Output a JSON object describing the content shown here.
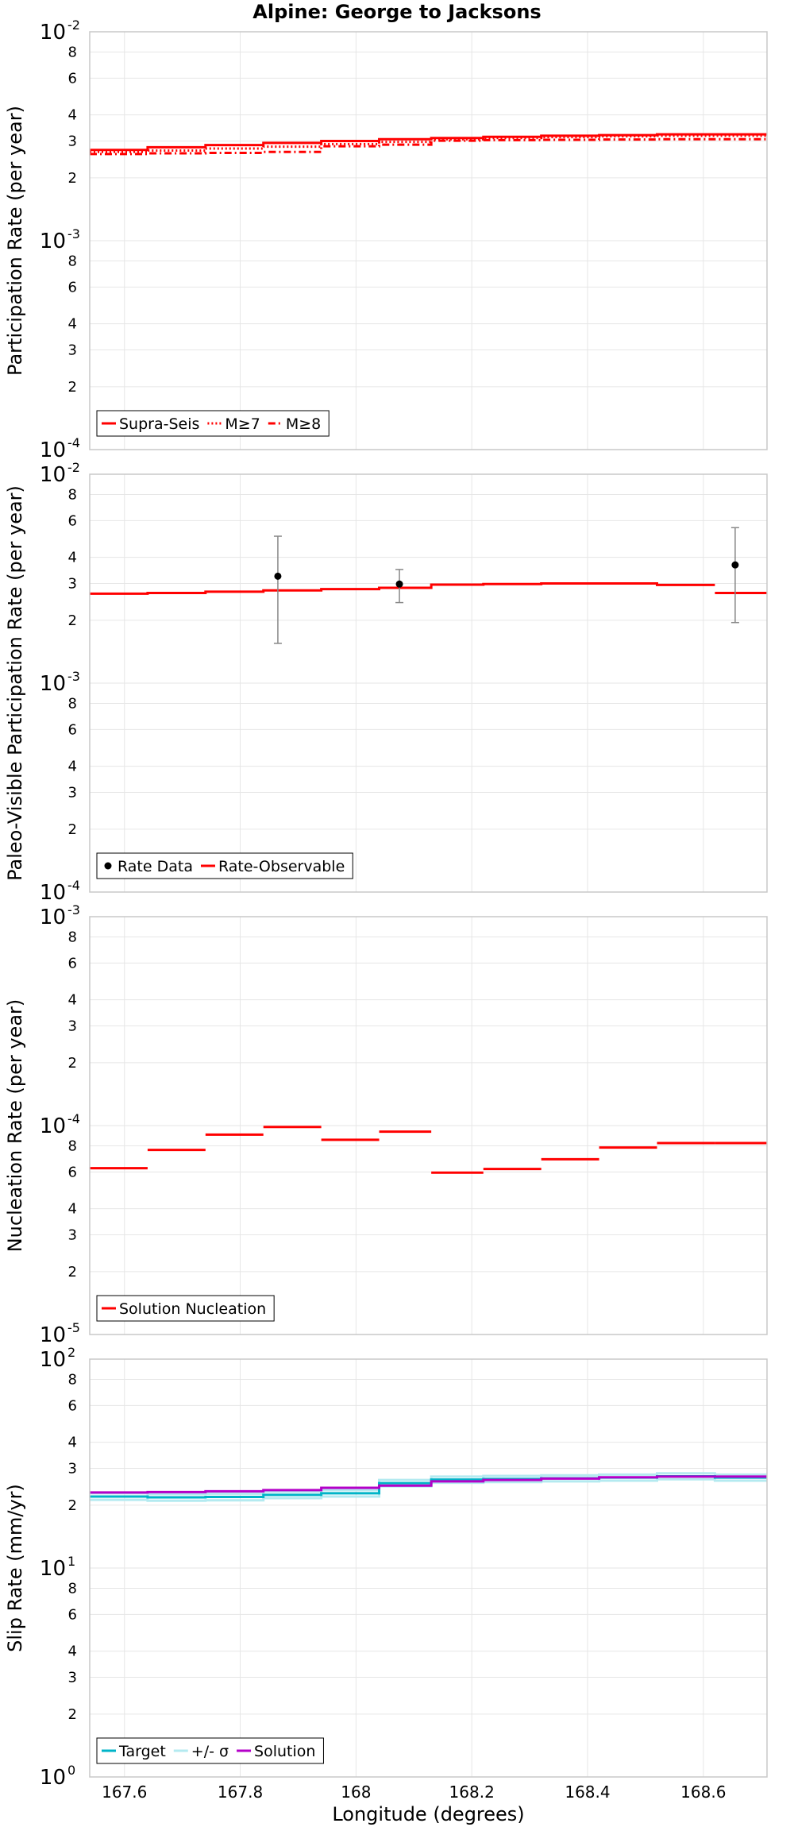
{
  "title": "Alpine: George to Jacksons",
  "x_axis": {
    "label": "Longitude (degrees)",
    "range": [
      167.54,
      168.71
    ],
    "ticks": [
      167.6,
      167.8,
      168.0,
      168.2,
      168.4,
      168.6
    ],
    "tick_labels": [
      "167.6",
      "167.8",
      "168",
      "168.2",
      "168.4",
      "168.6"
    ]
  },
  "colors": {
    "red": "#ff0000",
    "target": "#00b4c8",
    "sigma": "#b4eaf0",
    "solution": "#b400c8",
    "error": "#888888",
    "grid": "#e6e6e6",
    "frame": "#c8c8c8"
  },
  "chart_data": [
    {
      "type": "line",
      "name": "participation",
      "ylabel": "Participation Rate (per year)",
      "yscale": "log",
      "ylim": [
        0.0001,
        0.01
      ],
      "decades": [
        {
          "base": "10",
          "exp": "-4",
          "value": 0.0001
        },
        {
          "base": "10",
          "exp": "-3",
          "value": 0.001
        },
        {
          "base": "10",
          "exp": "-2",
          "value": 0.01
        }
      ],
      "minor_ticks": [
        2,
        3,
        4,
        6,
        8
      ],
      "legend": [
        {
          "label": "Supra-Seis",
          "style": "solid"
        },
        {
          "label": "M≥7",
          "style": "dotted"
        },
        {
          "label": "M≥8",
          "style": "dashdot"
        }
      ],
      "x_edges": [
        167.54,
        167.64,
        167.74,
        167.84,
        167.94,
        168.04,
        168.13,
        168.22,
        168.32,
        168.42,
        168.52,
        168.62,
        168.71
      ],
      "series": [
        {
          "name": "Supra-Seis",
          "color": "#ff0000",
          "style": "solid",
          "step": true,
          "values": [
            0.00272,
            0.0028,
            0.00287,
            0.00294,
            0.003,
            0.00306,
            0.0031,
            0.00314,
            0.00318,
            0.0032,
            0.00323,
            0.00323
          ]
        },
        {
          "name": "M≥7",
          "color": "#ff0000",
          "style": "dotted",
          "step": true,
          "values": [
            0.00266,
            0.0027,
            0.00276,
            0.00282,
            0.0029,
            0.00297,
            0.00306,
            0.0031,
            0.00313,
            0.00316,
            0.00318,
            0.00318
          ]
        },
        {
          "name": "M≥8",
          "color": "#ff0000",
          "style": "dashdot",
          "step": true,
          "values": [
            0.0026,
            0.00262,
            0.00263,
            0.00266,
            0.00283,
            0.00288,
            0.00301,
            0.00303,
            0.00304,
            0.00305,
            0.00306,
            0.00306
          ]
        }
      ]
    },
    {
      "type": "line",
      "name": "paleo",
      "ylabel": "Paleo-Visible Participation Rate (per year)",
      "yscale": "log",
      "ylim": [
        0.0001,
        0.01
      ],
      "decades": [
        {
          "base": "10",
          "exp": "-4",
          "value": 0.0001
        },
        {
          "base": "10",
          "exp": "-3",
          "value": 0.001
        },
        {
          "base": "10",
          "exp": "-2",
          "value": 0.01
        }
      ],
      "minor_ticks": [
        2,
        3,
        4,
        6,
        8
      ],
      "legend": [
        {
          "label": "Rate Data",
          "style": "dot"
        },
        {
          "label": "Rate-Observable",
          "style": "solid"
        }
      ],
      "x_edges": [
        167.54,
        167.64,
        167.74,
        167.84,
        167.94,
        168.04,
        168.13,
        168.22,
        168.32,
        168.42,
        168.52,
        168.62,
        168.71
      ],
      "series": [
        {
          "name": "Rate-Observable",
          "color": "#ff0000",
          "style": "solid",
          "step": true,
          "gaps": [
            10
          ],
          "values": [
            0.00268,
            0.0027,
            0.00274,
            0.00278,
            0.00282,
            0.00286,
            0.00296,
            0.00298,
            0.003,
            0.003,
            0.00295,
            0.0027
          ]
        }
      ],
      "points": [
        {
          "name": "Rate Data",
          "x": 167.865,
          "y": 0.00325,
          "lo": 0.00155,
          "hi": 0.00505
        },
        {
          "name": "Rate Data",
          "x": 168.075,
          "y": 0.00298,
          "lo": 0.00243,
          "hi": 0.0035
        },
        {
          "name": "Rate Data",
          "x": 168.655,
          "y": 0.00368,
          "lo": 0.00195,
          "hi": 0.00555
        }
      ]
    },
    {
      "type": "line",
      "name": "nucleation",
      "ylabel": "Nucleation Rate (per year)",
      "yscale": "log",
      "ylim": [
        1e-05,
        0.001
      ],
      "decades": [
        {
          "base": "10",
          "exp": "-5",
          "value": 1e-05
        },
        {
          "base": "10",
          "exp": "-4",
          "value": 0.0001
        },
        {
          "base": "10",
          "exp": "-3",
          "value": 0.001
        }
      ],
      "minor_ticks": [
        2,
        3,
        4,
        6,
        8
      ],
      "legend": [
        {
          "label": "Solution Nucleation",
          "style": "solid"
        }
      ],
      "x_edges": [
        167.54,
        167.64,
        167.74,
        167.84,
        167.94,
        168.04,
        168.13,
        168.22,
        168.32,
        168.42,
        168.52,
        168.62,
        168.71
      ],
      "series": [
        {
          "name": "Solution Nucleation",
          "color": "#ff0000",
          "style": "solid",
          "step": true,
          "gaps": [
            0,
            1,
            2,
            3,
            4,
            5,
            6,
            7,
            8,
            9,
            10
          ],
          "values": [
            6.25e-05,
            7.65e-05,
            9.05e-05,
            9.85e-05,
            8.55e-05,
            9.35e-05,
            5.95e-05,
            6.2e-05,
            6.9e-05,
            7.85e-05,
            8.25e-05,
            8.25e-05
          ]
        }
      ]
    },
    {
      "type": "line",
      "name": "slip",
      "ylabel": "Slip Rate (mm/yr)",
      "yscale": "log",
      "ylim": [
        1,
        100
      ],
      "decades": [
        {
          "base": "10",
          "exp": "0",
          "value": 1
        },
        {
          "base": "10",
          "exp": "1",
          "value": 10
        },
        {
          "base": "10",
          "exp": "2",
          "value": 100
        }
      ],
      "minor_ticks": [
        2,
        3,
        4,
        6,
        8
      ],
      "legend": [
        {
          "label": "Target",
          "style": "solid",
          "color": "#00b4c8"
        },
        {
          "label": "+/- σ",
          "style": "solid",
          "color": "#b4eaf0"
        },
        {
          "label": "Solution",
          "style": "solid",
          "color": "#b400c8"
        }
      ],
      "x_edges": [
        167.54,
        167.64,
        167.74,
        167.84,
        167.94,
        168.04,
        168.13,
        168.22,
        168.32,
        168.42,
        168.52,
        168.62,
        168.71
      ],
      "series": [
        {
          "name": "+/- σ upper",
          "color": "#b4eaf0",
          "style": "solid",
          "step": true,
          "values": [
            22.8,
            22.6,
            22.7,
            23.2,
            23.6,
            26.4,
            27.4,
            27.6,
            27.8,
            28.0,
            28.4,
            28.0
          ]
        },
        {
          "name": "+/- σ lower",
          "color": "#b4eaf0",
          "style": "solid",
          "step": true,
          "values": [
            21.2,
            21.0,
            21.1,
            21.6,
            22.0,
            24.6,
            25.6,
            25.8,
            26.0,
            26.2,
            26.6,
            26.2
          ]
        },
        {
          "name": "Target",
          "color": "#00b4c8",
          "style": "solid",
          "step": true,
          "values": [
            22.0,
            21.8,
            21.9,
            22.4,
            22.8,
            25.5,
            26.5,
            26.7,
            26.9,
            27.1,
            27.5,
            27.1
          ]
        },
        {
          "name": "Solution",
          "color": "#b400c8",
          "style": "solid",
          "step": true,
          "values": [
            23.0,
            23.1,
            23.3,
            23.6,
            24.2,
            24.8,
            26.0,
            26.4,
            26.8,
            27.2,
            27.4,
            27.4
          ]
        }
      ]
    }
  ]
}
